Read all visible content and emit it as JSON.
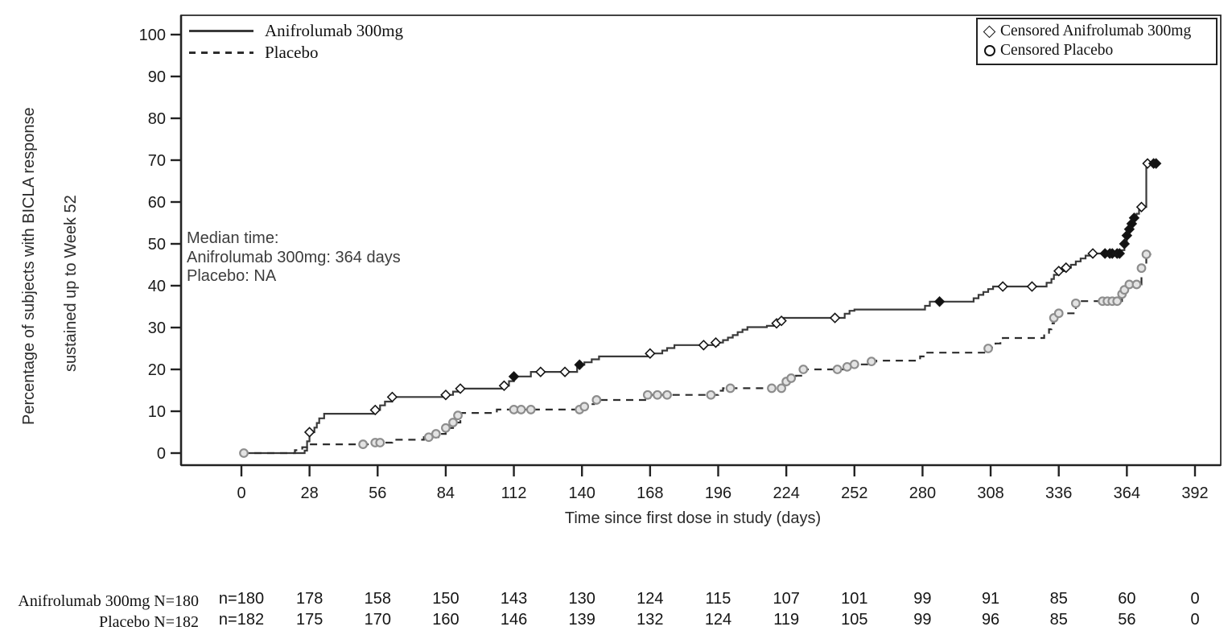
{
  "figure": {
    "background": "#ffffff"
  },
  "chart_data": {
    "type": "line",
    "subtype": "kaplan-meier-step",
    "xlabel": "Time since first dose in study (days)",
    "ylabel_line1": "Percentage of subjects with BICLA response",
    "ylabel_line2": "sustained up to Week 52",
    "xlim": [
      0,
      392
    ],
    "ylim": [
      0,
      100
    ],
    "xticks": [
      0,
      28,
      56,
      84,
      112,
      140,
      168,
      196,
      224,
      252,
      280,
      308,
      336,
      364,
      392
    ],
    "yticks": [
      0,
      10,
      20,
      30,
      40,
      50,
      60,
      70,
      80,
      90,
      100
    ],
    "grid": false,
    "legend_position": "top-left",
    "series_legend": [
      {
        "label": "Anifrolumab 300mg",
        "style": "solid"
      },
      {
        "label": "Placebo",
        "style": "dashed"
      }
    ],
    "censored_legend": [
      {
        "label": "Censored Anifrolumab 300mg",
        "marker": "diamond"
      },
      {
        "label": "Censored Placebo",
        "marker": "circle"
      }
    ],
    "annotation": {
      "lines": [
        "Median time:",
        "Anifrolumab 300mg: 364 days",
        "Placebo: NA"
      ]
    },
    "colors": {
      "anifrolumab_line": "#3a3a3a",
      "placebo_line": "#2d2d2d",
      "diamond_stroke": "#161616",
      "diamond_fill_hollow": "#ffffff",
      "diamond_fill_solid": "#121212",
      "circle_stroke": "#8d8d8d",
      "circle_fill": "#e3e3e3",
      "axis": "#222222"
    },
    "series": [
      {
        "name": "Anifrolumab 300mg",
        "line": "solid",
        "steps": [
          [
            0,
            0
          ],
          [
            26,
            0.6
          ],
          [
            27,
            2.8
          ],
          [
            28,
            5.0
          ],
          [
            30,
            6.1
          ],
          [
            31,
            7.2
          ],
          [
            32,
            8.3
          ],
          [
            34,
            9.4
          ],
          [
            55,
            10.3
          ],
          [
            57,
            11.4
          ],
          [
            59,
            12.3
          ],
          [
            62,
            13.4
          ],
          [
            84,
            13.9
          ],
          [
            87,
            14.7
          ],
          [
            90,
            15.4
          ],
          [
            108,
            16.1
          ],
          [
            110,
            17.2
          ],
          [
            112,
            18.3
          ],
          [
            119,
            19.4
          ],
          [
            138,
            20.5
          ],
          [
            139,
            21.1
          ],
          [
            141,
            21.7
          ],
          [
            144,
            22.4
          ],
          [
            147,
            23.1
          ],
          [
            167,
            23.8
          ],
          [
            173,
            24.5
          ],
          [
            175,
            25.1
          ],
          [
            178,
            25.8
          ],
          [
            196,
            26.4
          ],
          [
            198,
            27.0
          ],
          [
            200,
            27.6
          ],
          [
            202,
            28.2
          ],
          [
            204,
            28.9
          ],
          [
            206,
            29.5
          ],
          [
            208,
            30.1
          ],
          [
            216,
            30.4
          ],
          [
            219,
            31.0
          ],
          [
            221,
            31.6
          ],
          [
            223,
            32.3
          ],
          [
            248,
            33.3
          ],
          [
            250,
            34.0
          ],
          [
            252,
            34.3
          ],
          [
            281,
            35.2
          ],
          [
            283,
            36.2
          ],
          [
            301,
            37.0
          ],
          [
            303,
            37.8
          ],
          [
            305,
            38.5
          ],
          [
            307,
            39.2
          ],
          [
            309,
            39.8
          ],
          [
            331,
            40.7
          ],
          [
            333,
            41.6
          ],
          [
            334,
            42.6
          ],
          [
            336,
            43.5
          ],
          [
            339,
            44.3
          ],
          [
            341,
            45.0
          ],
          [
            343,
            45.8
          ],
          [
            345,
            46.5
          ],
          [
            347,
            47.2
          ],
          [
            349,
            47.7
          ],
          [
            362,
            48.5
          ],
          [
            363,
            50.0
          ],
          [
            364,
            52.0
          ],
          [
            365,
            53.5
          ],
          [
            366,
            54.8
          ],
          [
            367,
            56.2
          ],
          [
            368,
            57.2
          ],
          [
            369,
            58.8
          ],
          [
            372,
            69.2
          ],
          [
            377,
            69.2
          ]
        ]
      },
      {
        "name": "Placebo",
        "line": "dashed",
        "steps": [
          [
            0,
            0
          ],
          [
            22,
            0.7
          ],
          [
            25,
            1.4
          ],
          [
            27,
            2.1
          ],
          [
            55,
            2.5
          ],
          [
            62,
            3.2
          ],
          [
            75,
            3.8
          ],
          [
            81,
            4.6
          ],
          [
            84,
            6.0
          ],
          [
            87,
            7.3
          ],
          [
            90,
            9.6
          ],
          [
            105,
            10.4
          ],
          [
            140,
            11.1
          ],
          [
            143,
            11.7
          ],
          [
            145,
            12.3
          ],
          [
            147,
            12.7
          ],
          [
            166,
            13.2
          ],
          [
            168,
            13.9
          ],
          [
            196,
            14.9
          ],
          [
            198,
            15.5
          ],
          [
            223,
            16.4
          ],
          [
            225,
            17.1
          ],
          [
            226,
            17.9
          ],
          [
            228,
            18.5
          ],
          [
            231,
            20.0
          ],
          [
            249,
            20.6
          ],
          [
            252,
            21.2
          ],
          [
            258,
            21.9
          ],
          [
            261,
            22.1
          ],
          [
            279,
            23.1
          ],
          [
            281,
            24.0
          ],
          [
            306,
            24.6
          ],
          [
            308,
            25.2
          ],
          [
            310,
            26.2
          ],
          [
            312,
            27.0
          ],
          [
            313,
            27.5
          ],
          [
            330,
            28.4
          ],
          [
            332,
            29.6
          ],
          [
            333,
            31.0
          ],
          [
            334,
            32.3
          ],
          [
            336,
            33.4
          ],
          [
            343,
            35.8
          ],
          [
            345,
            36.3
          ],
          [
            362,
            38.0
          ],
          [
            363,
            39.0
          ],
          [
            364,
            39.8
          ],
          [
            365,
            40.3
          ],
          [
            370,
            44.2
          ],
          [
            372,
            47.5
          ],
          [
            374,
            47.5
          ]
        ]
      }
    ],
    "censored": [
      {
        "series": "Anifrolumab 300mg",
        "marker": "diamond",
        "hollow_points": [
          [
            28,
            5.0
          ],
          [
            55,
            10.3
          ],
          [
            62,
            13.4
          ],
          [
            84,
            13.9
          ],
          [
            90,
            15.4
          ],
          [
            108,
            16.1
          ],
          [
            123,
            19.4
          ],
          [
            133,
            19.4
          ],
          [
            168,
            23.8
          ],
          [
            190,
            25.8
          ],
          [
            195,
            26.4
          ],
          [
            220,
            31.0
          ],
          [
            222,
            31.6
          ],
          [
            244,
            32.3
          ],
          [
            313,
            39.8
          ],
          [
            325,
            39.8
          ],
          [
            336,
            43.5
          ],
          [
            339,
            44.3
          ],
          [
            350,
            47.7
          ],
          [
            370,
            58.8
          ],
          [
            372.5,
            69.2
          ]
        ],
        "filled_points": [
          [
            112,
            18.3
          ],
          [
            139,
            21.1
          ],
          [
            287,
            36.2
          ],
          [
            355,
            47.7
          ],
          [
            357,
            47.7
          ],
          [
            358,
            47.7
          ],
          [
            360,
            47.7
          ],
          [
            361,
            47.7
          ],
          [
            363,
            50.0
          ],
          [
            364,
            52.0
          ],
          [
            365,
            53.5
          ],
          [
            366,
            54.8
          ],
          [
            367,
            56.2
          ],
          [
            375,
            69.2
          ],
          [
            376,
            69.2
          ]
        ]
      },
      {
        "series": "Placebo",
        "marker": "circle",
        "points": [
          [
            1,
            0
          ],
          [
            50,
            2.1
          ],
          [
            55,
            2.5
          ],
          [
            57,
            2.5
          ],
          [
            77,
            3.8
          ],
          [
            80,
            4.6
          ],
          [
            84,
            6.0
          ],
          [
            87,
            7.3
          ],
          [
            89,
            9.0
          ],
          [
            112,
            10.4
          ],
          [
            115,
            10.4
          ],
          [
            119,
            10.4
          ],
          [
            139,
            10.4
          ],
          [
            141,
            11.1
          ],
          [
            146,
            12.7
          ],
          [
            167,
            13.9
          ],
          [
            171,
            13.9
          ],
          [
            175,
            13.9
          ],
          [
            193,
            13.9
          ],
          [
            201,
            15.5
          ],
          [
            218,
            15.5
          ],
          [
            222,
            15.5
          ],
          [
            224,
            17.1
          ],
          [
            226,
            17.9
          ],
          [
            231,
            20.0
          ],
          [
            245,
            20.0
          ],
          [
            249,
            20.6
          ],
          [
            252,
            21.2
          ],
          [
            259,
            21.9
          ],
          [
            307,
            25.0
          ],
          [
            334,
            32.3
          ],
          [
            336,
            33.4
          ],
          [
            343,
            35.8
          ],
          [
            354,
            36.3
          ],
          [
            356,
            36.3
          ],
          [
            358,
            36.3
          ],
          [
            360,
            36.3
          ],
          [
            362,
            38.0
          ],
          [
            363,
            39.0
          ],
          [
            365,
            40.3
          ],
          [
            368,
            40.3
          ],
          [
            370,
            44.2
          ],
          [
            372,
            47.5
          ]
        ]
      }
    ],
    "risk_table": {
      "rows": [
        {
          "label": "Anifrolumab 300mg N=180",
          "values": [
            "n=180",
            "178",
            "158",
            "150",
            "143",
            "130",
            "124",
            "115",
            "107",
            "101",
            "99",
            "91",
            "85",
            "60",
            "0"
          ]
        },
        {
          "label": "Placebo N=182",
          "values": [
            "n=182",
            "175",
            "170",
            "160",
            "146",
            "139",
            "132",
            "124",
            "119",
            "105",
            "99",
            "96",
            "85",
            "56",
            "0"
          ]
        }
      ]
    }
  }
}
